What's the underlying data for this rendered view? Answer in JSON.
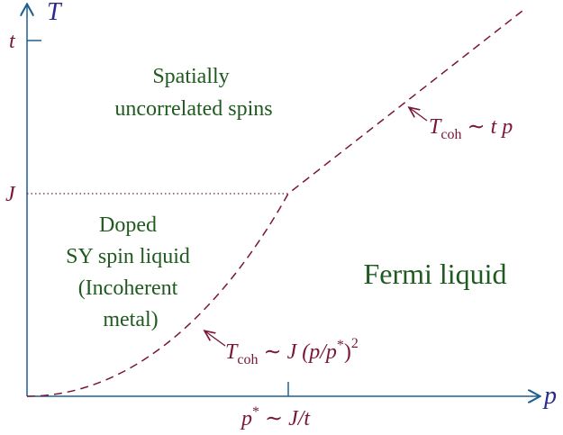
{
  "axes": {
    "x_label": "p",
    "y_label": "T"
  },
  "ticks": {
    "t": "t",
    "J": "J",
    "pstar": {
      "main": "p",
      "sup": "*",
      "rest": " ∼ J/t"
    }
  },
  "regions": [
    [
      "Spatially",
      "uncorrelated spins"
    ],
    [
      "Doped",
      "SY spin liquid",
      "(Incoherent",
      "metal)"
    ],
    [
      "Fermi liquid"
    ]
  ],
  "annotations": [
    {
      "main": "T",
      "sub": "coh",
      "rest": " ∼ t p"
    },
    {
      "main": "T",
      "sub": "coh",
      "rest": " ∼ J (p/p",
      "sup": "*",
      "end": ")",
      "sup2": "2"
    }
  ]
}
